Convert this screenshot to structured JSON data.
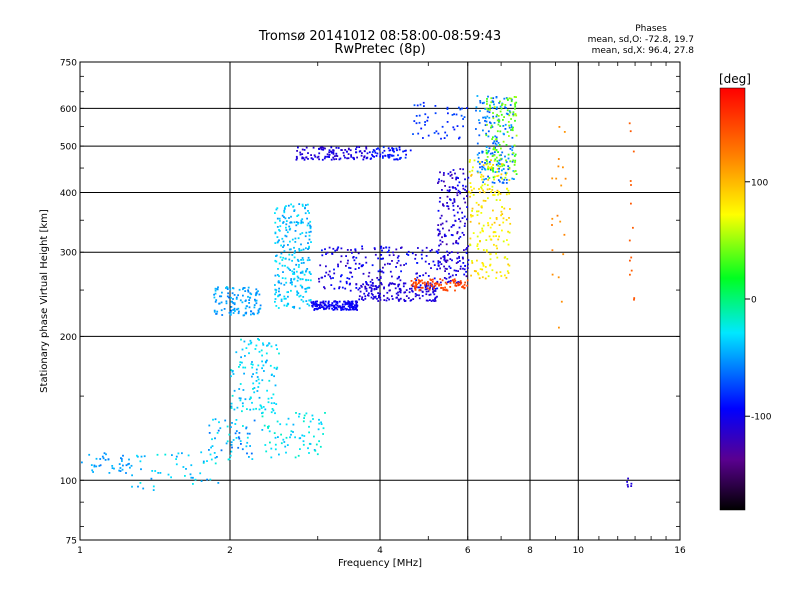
{
  "chart_data": {
    "type": "scatter",
    "title": "Tromsø 20141012 08:58:00-08:59:43",
    "subtitle": "RwPretec (8p)",
    "xlabel": "Frequency [MHz]",
    "ylabel": "Stationary phase Virtual Height [km]",
    "x_scale": "log",
    "y_scale": "log",
    "xlim": [
      1,
      16
    ],
    "ylim": [
      75,
      750
    ],
    "x_ticks": [
      1,
      2,
      4,
      6,
      8,
      10,
      16
    ],
    "x_tick_labels": [
      "1",
      "2",
      "4",
      "6",
      "8",
      "10",
      "16"
    ],
    "y_ticks": [
      75,
      100,
      200,
      300,
      400,
      500,
      600,
      750
    ],
    "y_tick_labels": [
      "75",
      "100",
      "200",
      "300",
      "400",
      "500",
      "600",
      "750"
    ],
    "grid": true,
    "phase_stats": {
      "title": "Phases",
      "line_o": "mean, sd,O: -72.8, 19.7",
      "line_x": "mean, sd,X:  96.4, 27.8"
    },
    "colorbar": {
      "label": "[deg]",
      "range": [
        -180,
        180
      ],
      "ticks": [
        100,
        0,
        -100
      ],
      "tick_labels": [
        "100",
        "0",
        "-100"
      ]
    },
    "traces": [
      {
        "x_range": [
          1.0,
          1.25
        ],
        "y_range": [
          103,
          115
        ],
        "phase": -50,
        "spread": 0.03,
        "count": 40
      },
      {
        "x_range": [
          1.25,
          1.9
        ],
        "y_range": [
          95,
          115
        ],
        "phase": -40,
        "spread": 0.05,
        "count": 50
      },
      {
        "x_range": [
          1.8,
          2.25
        ],
        "y_range": [
          110,
          135
        ],
        "phase": -45,
        "spread": 0.06,
        "count": 60
      },
      {
        "x_range": [
          2.3,
          3.1
        ],
        "y_range": [
          112,
          140
        ],
        "phase": -30,
        "spread": 0.04,
        "count": 80
      },
      {
        "x_range": [
          2.0,
          2.5
        ],
        "y_range": [
          140,
          200
        ],
        "phase": -35,
        "spread": 0.04,
        "count": 120
      },
      {
        "x_range": [
          1.85,
          2.3
        ],
        "y_range": [
          222,
          255
        ],
        "phase": -50,
        "spread": 0.03,
        "count": 120
      },
      {
        "x_range": [
          2.45,
          2.9
        ],
        "y_range": [
          230,
          380
        ],
        "phase": -40,
        "spread": 0.04,
        "count": 260
      },
      {
        "x_range": [
          2.9,
          3.6
        ],
        "y_range": [
          228,
          238
        ],
        "phase": -100,
        "spread": 0.02,
        "count": 160
      },
      {
        "x_range": [
          3.6,
          5.2
        ],
        "y_range": [
          238,
          260
        ],
        "phase": -110,
        "spread": 0.02,
        "count": 160
      },
      {
        "x_range": [
          3.0,
          5.2
        ],
        "y_range": [
          250,
          310
        ],
        "phase": -105,
        "spread": 0.05,
        "count": 200
      },
      {
        "x_range": [
          5.2,
          6.0
        ],
        "y_range": [
          260,
          450
        ],
        "phase": -110,
        "spread": 0.05,
        "count": 200
      },
      {
        "x_range": [
          4.6,
          6.0
        ],
        "y_range": [
          250,
          265
        ],
        "phase": 150,
        "spread": 0.02,
        "count": 90
      },
      {
        "x_range": [
          6.0,
          7.3
        ],
        "y_range": [
          265,
          470
        ],
        "phase": 80,
        "spread": 0.05,
        "count": 200
      },
      {
        "x_range": [
          6.2,
          7.4
        ],
        "y_range": [
          420,
          640
        ],
        "phase": -60,
        "spread": 0.04,
        "count": 160
      },
      {
        "x_range": [
          6.5,
          7.5
        ],
        "y_range": [
          430,
          640
        ],
        "phase": 40,
        "spread": 0.04,
        "count": 120
      },
      {
        "x_range": [
          2.7,
          3.8
        ],
        "y_range": [
          470,
          500
        ],
        "phase": -110,
        "spread": 0.03,
        "count": 110
      },
      {
        "x_range": [
          3.8,
          4.6
        ],
        "y_range": [
          470,
          500
        ],
        "phase": -90,
        "spread": 0.03,
        "count": 60
      },
      {
        "x_range": [
          4.6,
          6.0
        ],
        "y_range": [
          520,
          620
        ],
        "phase": -80,
        "spread": 0.03,
        "count": 50
      },
      {
        "x_range": [
          8.8,
          9.4
        ],
        "y_range": [
          200,
          600
        ],
        "phase": 120,
        "spread": 0.02,
        "count": 20
      },
      {
        "x_range": [
          12.6,
          12.9
        ],
        "y_range": [
          230,
          650
        ],
        "phase": 140,
        "spread": 0.01,
        "count": 14
      },
      {
        "x_range": [
          12.4,
          12.8
        ],
        "y_range": [
          97,
          102
        ],
        "phase": -110,
        "spread": 0.01,
        "count": 6
      }
    ]
  }
}
